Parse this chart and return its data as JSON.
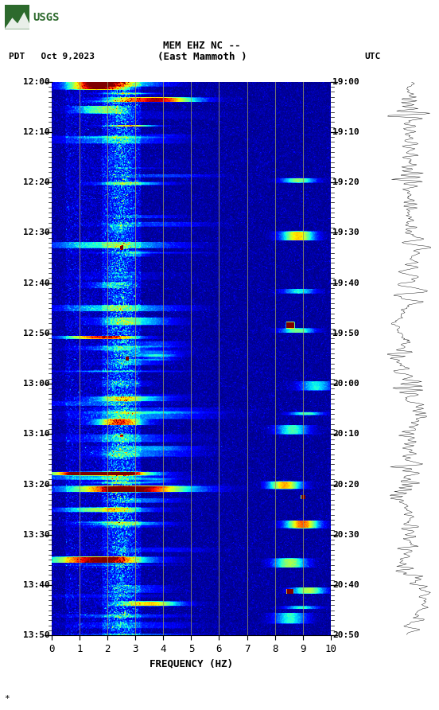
{
  "title_line1": "MEM EHZ NC --",
  "title_line2": "(East Mammoth )",
  "left_label": "PDT   Oct 9,2023",
  "right_label": "UTC",
  "left_times": [
    "12:00",
    "12:10",
    "12:20",
    "12:30",
    "12:40",
    "12:50",
    "13:00",
    "13:10",
    "13:20",
    "13:30",
    "13:40",
    "13:50"
  ],
  "right_times": [
    "19:00",
    "19:10",
    "19:20",
    "19:30",
    "19:40",
    "19:50",
    "20:00",
    "20:10",
    "20:20",
    "20:30",
    "20:40",
    "20:50"
  ],
  "freq_min": 0,
  "freq_max": 10,
  "freq_ticks": [
    0,
    1,
    2,
    3,
    4,
    5,
    6,
    7,
    8,
    9,
    10
  ],
  "freq_label": "FREQUENCY (HZ)",
  "vline_freqs": [
    1,
    2,
    3,
    4,
    5,
    6,
    7,
    8,
    9
  ],
  "fig_bg": "#ffffff",
  "spectrogram_cmap": "jet",
  "time_steps": 720,
  "freq_steps": 500,
  "noise_seed": 42,
  "usgs_green": "#2d6a2d",
  "small_text": "*",
  "figsize": [
    5.52,
    8.92
  ],
  "dpi": 100
}
